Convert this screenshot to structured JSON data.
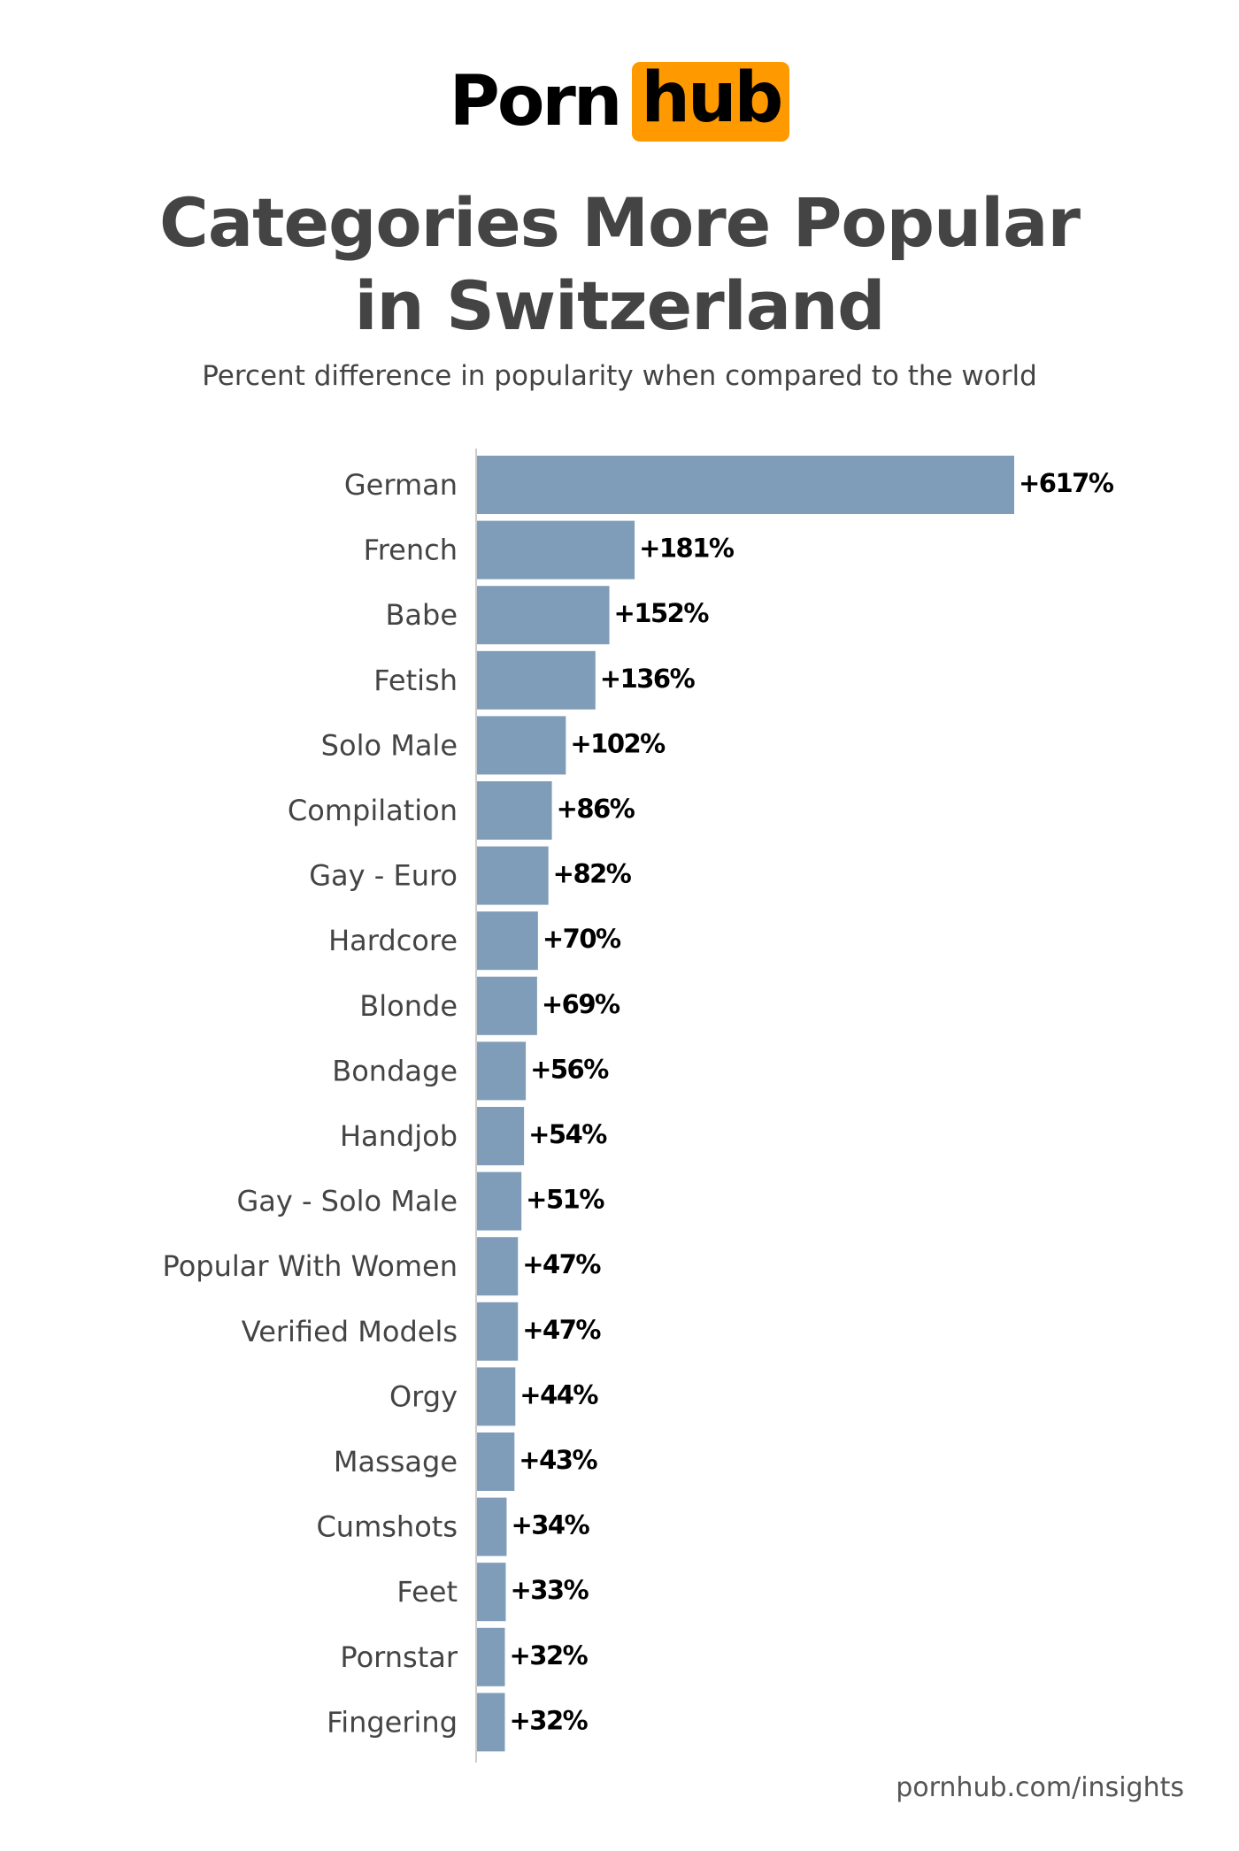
{
  "logo": {
    "left_text": "Porn",
    "right_text": "hub"
  },
  "header": {
    "title_line1": "Categories More Popular",
    "title_line2": "in Switzerland",
    "subtitle": "Percent difference in popularity when compared to the world"
  },
  "footer": {
    "source": "pornhub.com/insights"
  },
  "colors": {
    "bar": "#7f9db8",
    "accent": "#ff9900",
    "axis": "#cccccc",
    "label": "#444444",
    "value": "#000000"
  },
  "chart_data": {
    "type": "bar",
    "orientation": "horizontal",
    "title": "Categories More Popular in Switzerland",
    "subtitle": "Percent difference in popularity when compared to the world",
    "xlabel": "",
    "ylabel": "",
    "xlim": [
      0,
      617
    ],
    "grid": false,
    "categories": [
      "German",
      "French",
      "Babe",
      "Fetish",
      "Solo Male",
      "Compilation",
      "Gay - Euro",
      "Hardcore",
      "Blonde",
      "Bondage",
      "Handjob",
      "Gay - Solo Male",
      "Popular With Women",
      "Verified Models",
      "Orgy",
      "Massage",
      "Cumshots",
      "Feet",
      "Pornstar",
      "Fingering"
    ],
    "values": [
      617,
      181,
      152,
      136,
      102,
      86,
      82,
      70,
      69,
      56,
      54,
      51,
      47,
      47,
      44,
      43,
      34,
      33,
      32,
      32
    ],
    "value_labels": [
      "+617%",
      "+181%",
      "+152%",
      "+136%",
      "+102%",
      "+86%",
      "+82%",
      "+70%",
      "+69%",
      "+56%",
      "+54%",
      "+51%",
      "+47%",
      "+47%",
      "+44%",
      "+43%",
      "+34%",
      "+33%",
      "+32%",
      "+32%"
    ]
  }
}
